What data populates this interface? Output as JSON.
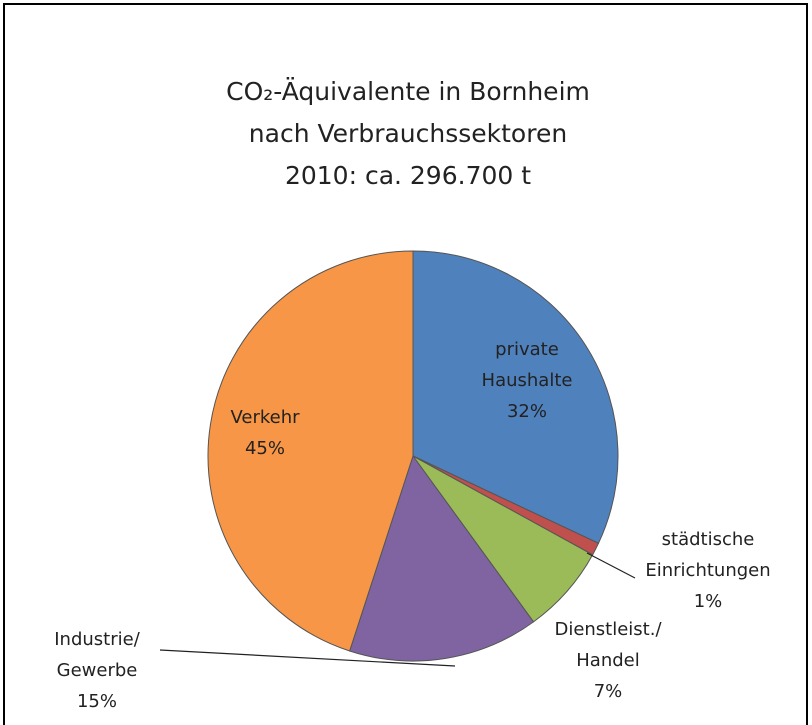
{
  "chart_data": {
    "type": "pie",
    "title": "CO₂-Äquivalente in Bornheim\nnach Verbrauchssektoren\n2010:  ca. 296.700 t",
    "categories": [
      "private\nHaushalte",
      "städtische\nEinrichtungen",
      "Dienstleist./\nHandel",
      "Industrie/\nGewerbe",
      "Verkehr"
    ],
    "values": [
      32,
      1,
      7,
      15,
      45
    ],
    "value_labels": [
      "32%",
      "1%",
      "7%",
      "15%",
      "45%"
    ],
    "colors": [
      "#4f81bd",
      "#c0504d",
      "#9bbb59",
      "#8064a2",
      "#f79646"
    ]
  }
}
